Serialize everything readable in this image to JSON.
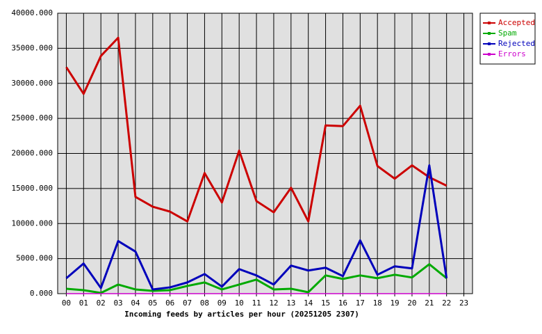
{
  "chart_data": {
    "type": "line",
    "x_label": "Incoming feeds by articles per hour (20251205 2307)",
    "categories": [
      "00",
      "01",
      "02",
      "03",
      "04",
      "05",
      "06",
      "07",
      "08",
      "09",
      "10",
      "11",
      "12",
      "13",
      "14",
      "15",
      "16",
      "17",
      "18",
      "19",
      "20",
      "21",
      "22",
      "23"
    ],
    "series": [
      {
        "name": "Accepted",
        "color": "#cc0000",
        "values": [
          32300,
          28500,
          33900,
          36500,
          13800,
          12400,
          11700,
          10300,
          17200,
          13000,
          20400,
          13200,
          11600,
          15100,
          10300,
          24000,
          23900,
          26800,
          18200,
          16400,
          18300,
          16600,
          15400,
          null
        ]
      },
      {
        "name": "Spam",
        "color": "#00aa00",
        "values": [
          700,
          500,
          100,
          1300,
          600,
          400,
          500,
          1100,
          1600,
          600,
          1300,
          2000,
          600,
          700,
          200,
          2600,
          2100,
          2600,
          2200,
          2700,
          2300,
          4200,
          2200,
          null
        ]
      },
      {
        "name": "Rejected",
        "color": "#0000bb",
        "values": [
          2200,
          4300,
          800,
          7500,
          6000,
          600,
          900,
          1600,
          2800,
          1000,
          3500,
          2600,
          1300,
          4000,
          3300,
          3700,
          2500,
          7600,
          2700,
          3900,
          3600,
          18300,
          2200,
          null
        ]
      },
      {
        "name": "Errors",
        "color": "#cc00cc",
        "values": [
          0,
          0,
          0,
          0,
          0,
          0,
          0,
          0,
          0,
          0,
          0,
          0,
          0,
          0,
          0,
          0,
          0,
          0,
          0,
          0,
          0,
          0,
          0,
          null
        ]
      }
    ],
    "ylim": [
      0,
      40000
    ],
    "yticks": [
      {
        "value": 0,
        "label": "0.000"
      },
      {
        "value": 5000,
        "label": "5000.000"
      },
      {
        "value": 10000,
        "label": "10000.000"
      },
      {
        "value": 15000,
        "label": "15000.000"
      },
      {
        "value": 20000,
        "label": "20000.000"
      },
      {
        "value": 25000,
        "label": "25000.000"
      },
      {
        "value": 30000,
        "label": "30000.000"
      },
      {
        "value": 35000,
        "label": "35000.000"
      },
      {
        "value": 40000,
        "label": "40000.000"
      }
    ],
    "grid": true,
    "plot_background": "#e0e0e0",
    "legend": "top-right"
  }
}
